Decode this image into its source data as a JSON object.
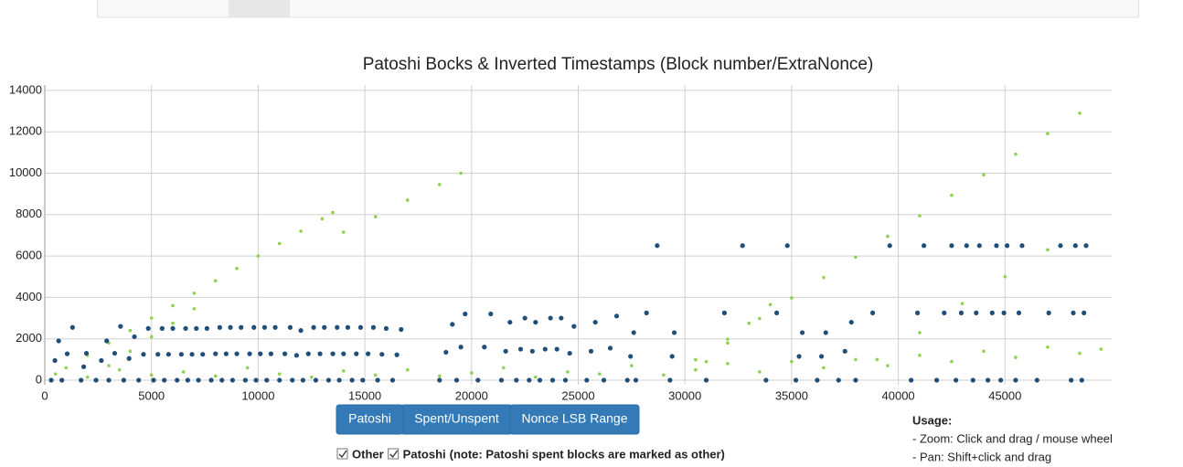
{
  "chart_data": {
    "type": "scatter",
    "title": "Patoshi Bocks & Inverted Timestamps (Block number/ExtraNonce)",
    "xlim": [
      0,
      50000
    ],
    "ylim": [
      -220,
      14260
    ],
    "xticks": [
      0,
      5000,
      10000,
      15000,
      20000,
      25000,
      30000,
      35000,
      40000,
      45000
    ],
    "yticks": [
      0,
      2000,
      4000,
      6000,
      8000,
      10000,
      12000,
      14000
    ],
    "grid": true,
    "series": [
      {
        "name": "Other",
        "color": "#8fd14f",
        "x": [
          1000,
          2000,
          3000,
          4000,
          5000,
          6000,
          7000,
          8000,
          9000,
          10000,
          11000,
          12000,
          13000,
          13500,
          14000,
          15500,
          17000,
          18500,
          19500,
          3000,
          4000,
          5000,
          6000,
          7000,
          30500,
          32000,
          33500,
          35000,
          36500,
          38000,
          39500,
          41000,
          42500,
          44000,
          45500,
          47000,
          48500,
          31000,
          32000,
          33000,
          34000,
          39000,
          41000,
          43000,
          45000,
          47000,
          500,
          2000,
          3500,
          5000,
          6500,
          8000,
          9500,
          11000,
          12500,
          14000,
          15500,
          17000,
          18500,
          20000,
          21500,
          23000,
          24500,
          26000,
          27500,
          29000,
          30500,
          32000,
          33500,
          35000,
          36500,
          38000,
          39500,
          41000,
          42500,
          44000,
          45500,
          47000,
          48500,
          49500
        ],
        "y": [
          600,
          1200,
          1800,
          2400,
          3000,
          3600,
          4200,
          4800,
          5400,
          6000,
          6600,
          7200,
          7800,
          8100,
          7150,
          7900,
          8700,
          9450,
          10000,
          700,
          1400,
          2100,
          2750,
          3450,
          990,
          1980,
          2980,
          3970,
          4960,
          5950,
          6950,
          7940,
          8930,
          9920,
          10920,
          11910,
          12900,
          900,
          1800,
          2750,
          3650,
          1000,
          2300,
          3700,
          5000,
          6300,
          300,
          150,
          500,
          250,
          400,
          200,
          600,
          300,
          150,
          450,
          250,
          500,
          200,
          350,
          600,
          150,
          400,
          300,
          700,
          250,
          500,
          800,
          400,
          900,
          600,
          1000,
          700,
          1200,
          900,
          1400,
          1100,
          1600,
          1300,
          1500
        ]
      },
      {
        "name": "Patoshi",
        "color": "#1f4e79",
        "x": [
          300,
          475,
          650,
          800,
          1050,
          1300,
          1700,
          1825,
          1950,
          2400,
          2650,
          2900,
          3000,
          3275,
          3550,
          3700,
          3950,
          4200,
          4400,
          4625,
          4850,
          5100,
          5300,
          5500,
          5600,
          5800,
          6000,
          6200,
          6400,
          6600,
          6700,
          6900,
          7100,
          7200,
          7400,
          7600,
          7800,
          8000,
          8200,
          8300,
          8500,
          8700,
          8800,
          9000,
          9200,
          9400,
          9600,
          9800,
          9900,
          10100,
          10300,
          10400,
          10600,
          10800,
          11000,
          11250,
          11500,
          11600,
          11800,
          12000,
          12100,
          12350,
          12600,
          12700,
          12900,
          13100,
          13300,
          13500,
          13700,
          13800,
          14000,
          14200,
          14400,
          14600,
          14800,
          14900,
          15150,
          15400,
          15600,
          15800,
          16000,
          16300,
          16500,
          16700,
          18500,
          18800,
          19100,
          19300,
          19500,
          19700,
          20300,
          20600,
          20900,
          21400,
          21600,
          21800,
          22100,
          22300,
          22500,
          22700,
          22850,
          23000,
          23200,
          23450,
          23700,
          23800,
          24000,
          24200,
          24400,
          24600,
          24800,
          25400,
          25600,
          25800,
          26200,
          26500,
          26800,
          27300,
          27450,
          27600,
          27700,
          28200,
          28700,
          29300,
          29400,
          29500,
          31000,
          31850,
          32700,
          33800,
          34300,
          34800,
          35200,
          35350,
          35500,
          36200,
          36400,
          36600,
          37200,
          37500,
          37800,
          38000,
          38800,
          39600,
          40600,
          40900,
          41200,
          41800,
          42150,
          42500,
          42700,
          42950,
          43200,
          43500,
          43650,
          43800,
          44200,
          44400,
          44600,
          44800,
          44950,
          45100,
          45500,
          45650,
          45800,
          46500,
          47050,
          47600,
          48100,
          48200,
          48300,
          48600,
          48700,
          48800
        ],
        "y": [
          0,
          950,
          1900,
          0,
          1275,
          2550,
          0,
          650,
          1300,
          0,
          950,
          1900,
          0,
          1300,
          2600,
          0,
          1050,
          2100,
          0,
          1250,
          2500,
          0,
          1250,
          2500,
          0,
          1250,
          2500,
          0,
          1250,
          2500,
          0,
          1250,
          2500,
          0,
          1250,
          2500,
          0,
          1275,
          2550,
          0,
          1275,
          2550,
          0,
          1275,
          2550,
          0,
          1275,
          2550,
          0,
          1275,
          2550,
          0,
          1275,
          2550,
          0,
          1275,
          2550,
          0,
          1200,
          2400,
          0,
          1275,
          2550,
          0,
          1275,
          2550,
          0,
          1275,
          2550,
          0,
          1275,
          2550,
          0,
          1275,
          2550,
          0,
          1275,
          2550,
          0,
          1250,
          2500,
          0,
          1225,
          2450,
          0,
          1350,
          2700,
          0,
          1600,
          3200,
          0,
          1600,
          3200,
          0,
          1400,
          2800,
          0,
          1500,
          3000,
          0,
          1400,
          2800,
          0,
          1500,
          3000,
          0,
          1500,
          3000,
          0,
          1300,
          2600,
          0,
          1400,
          2800,
          0,
          1550,
          3100,
          0,
          1150,
          2300,
          0,
          3250,
          6500,
          0,
          1150,
          2300,
          0,
          3250,
          6500,
          0,
          3250,
          6500,
          0,
          1150,
          2300,
          0,
          1150,
          2300,
          0,
          1400,
          2800,
          0,
          3250,
          6500,
          0,
          3250,
          6500,
          0,
          3250,
          6500,
          0,
          3250,
          6500,
          0,
          3250,
          6500,
          0,
          3250,
          6500,
          0,
          3250,
          6500,
          0,
          3250,
          6500,
          0,
          3250,
          6500,
          0,
          3250,
          6500,
          0,
          3250,
          6500
        ]
      }
    ],
    "buttons": [
      "Patoshi",
      "Spent/Unspent",
      "Nonce LSB Range"
    ],
    "note": "(note: Patoshi spent blocks are marked as other)",
    "usage": {
      "title": "Usage:",
      "lines": [
        "- Zoom: Click and drag / mouse wheel",
        "- Pan: Shift+click and drag"
      ]
    }
  }
}
